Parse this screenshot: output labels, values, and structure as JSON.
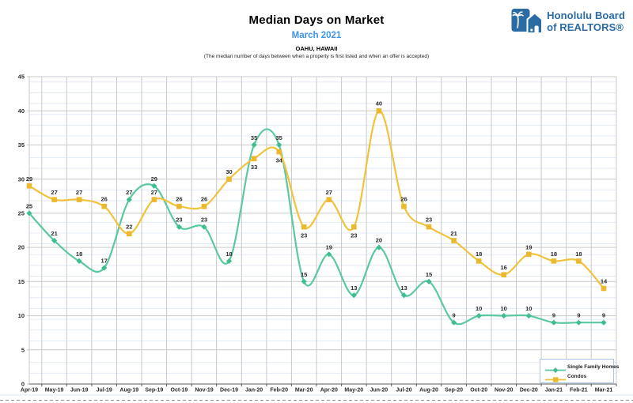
{
  "header": {
    "title": "Median Days on Market",
    "subtitle": "March 2021",
    "location": "OAHU, HAWAII",
    "description": "(The median number of days between when a property is first listed and when an offer is accepted)"
  },
  "logo": {
    "line1": "Honolulu Board",
    "line2": "of REALTORS®",
    "color": "#2B6CA4"
  },
  "chart_data": {
    "type": "line",
    "smooth": true,
    "grid": true,
    "legend_position": "bottom-right",
    "ylim": [
      0,
      45
    ],
    "ytick_step": 5,
    "x": [
      "Apr-19",
      "May-19",
      "Jun-19",
      "Jul-19",
      "Aug-19",
      "Sep-19",
      "Oct-19",
      "Nov-19",
      "Dec-19",
      "Jan-20",
      "Feb-20",
      "Mar-20",
      "Apr-20",
      "May-20",
      "Jun-20",
      "Jul-20",
      "Aug-20",
      "Sep-20",
      "Oct-20",
      "Nov-20",
      "Dec-20",
      "Jan-21",
      "Feb-21",
      "Mar-21"
    ],
    "series": [
      {
        "name": "Single Family Homes",
        "color": "#5BC8A1",
        "marker_color": "#3FBF90",
        "marker": "diamond",
        "values": [
          25,
          21,
          18,
          17,
          27,
          29,
          23,
          23,
          18,
          35,
          35,
          15,
          19,
          13,
          20,
          13,
          15,
          9,
          10,
          10,
          10,
          9,
          9,
          9
        ],
        "labels_below_indices": []
      },
      {
        "name": "Condos",
        "color": "#F1C23B",
        "marker_color": "#ECB82D",
        "marker": "square",
        "values": [
          29,
          27,
          27,
          26,
          22,
          27,
          26,
          26,
          30,
          33,
          34,
          23,
          27,
          23,
          40,
          26,
          23,
          21,
          18,
          16,
          19,
          18,
          18,
          14
        ],
        "labels_below_indices": [
          9,
          10,
          11,
          13
        ]
      }
    ],
    "colors": {
      "gridline": "#C9C9C9",
      "axis_line": "#595959",
      "label_text": "#2b2b2b",
      "sheet_row_line": "#DFE8F4",
      "page_break_dash": "#909090"
    }
  }
}
